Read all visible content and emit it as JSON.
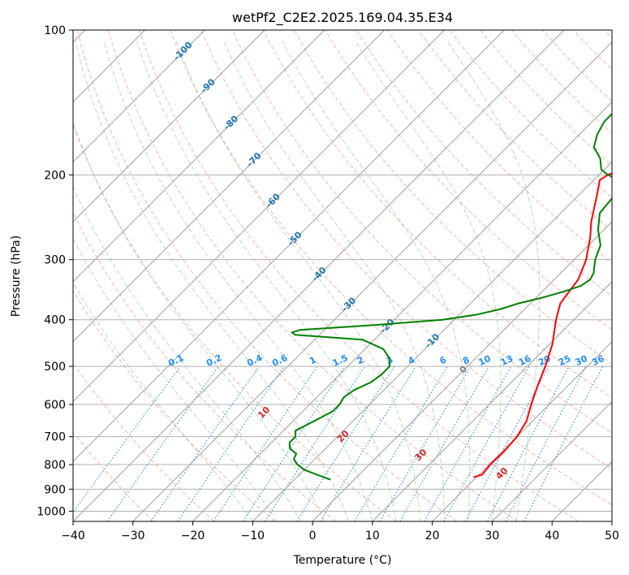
{
  "chart_data": {
    "type": "line",
    "title": "wetPf2_C2E2.2025.169.04.35.E34",
    "xlabel": "Temperature (°C)",
    "ylabel": "Pressure (hPa)",
    "xlim": [
      -40,
      50
    ],
    "ylim": [
      1050,
      100
    ],
    "y_scale": "log",
    "grid": true,
    "x_ticks": [
      "−40",
      "−30",
      "−20",
      "−10",
      "0",
      "10",
      "20",
      "30",
      "40",
      "50"
    ],
    "y_ticks": [
      "100",
      "200",
      "300",
      "400",
      "500",
      "600",
      "700",
      "800",
      "900",
      "1000"
    ],
    "colors": {
      "temperature": "#ff0000",
      "dewpoint": "#008000",
      "isotherm": "#a0a0a0",
      "dry_adiabat": "#fa8072",
      "moist_adiabat": "#6ab06a",
      "mixing_ratio": "#1f8fff",
      "isotherm_label": "#1f77b4",
      "mixing_label": "#1f8fff",
      "adiabat_label": "#d62728"
    },
    "temperature_profile": {
      "p": [
        850,
        840,
        800,
        750,
        700,
        650,
        600,
        550,
        500,
        450,
        400,
        370,
        350,
        330,
        300,
        270,
        250,
        220,
        205,
        200,
        195,
        185,
        175,
        160,
        150,
        140,
        130,
        120,
        110,
        100
      ],
      "t": [
        19.5,
        20.5,
        20.2,
        20.3,
        20.0,
        19.0,
        17.0,
        15.0,
        13.0,
        10.5,
        7.0,
        5.0,
        4.5,
        4.0,
        2.0,
        -1.0,
        -3.5,
        -7.0,
        -9.0,
        -8.5,
        -7.0,
        -3.5,
        -1.0,
        5.0,
        8.0,
        10.0,
        12.0,
        14.0,
        16.0,
        19.0
      ]
    },
    "dewpoint_profile": {
      "p": [
        860,
        840,
        820,
        800,
        780,
        760,
        740,
        720,
        700,
        680,
        660,
        640,
        620,
        600,
        580,
        560,
        540,
        520,
        500,
        480,
        460,
        440,
        430,
        425,
        420,
        410,
        400,
        390,
        380,
        370,
        360,
        350,
        340,
        330,
        320,
        300,
        280,
        260,
        240,
        220,
        210,
        205,
        200,
        195,
        185,
        175,
        165,
        155,
        145,
        135,
        120,
        110,
        100
      ],
      "t": [
        -4.0,
        -7.0,
        -10.0,
        -12.0,
        -13.5,
        -14.0,
        -16.0,
        -17.0,
        -17.0,
        -18.0,
        -17.0,
        -16.0,
        -15.0,
        -15.0,
        -15.5,
        -15.0,
        -13.5,
        -13.0,
        -13.0,
        -14.5,
        -17.0,
        -22.0,
        -34.0,
        -35.0,
        -34.0,
        -22.0,
        -12.0,
        -7.0,
        -4.0,
        -2.0,
        1.0,
        3.5,
        5.5,
        6.0,
        5.5,
        3.5,
        2.0,
        -1.0,
        -3.5,
        -4.0,
        -4.5,
        -6.0,
        -8.5,
        -10.5,
        -12.5,
        -15.5,
        -17.0,
        -18.0,
        -18.0,
        -13.0,
        -8.0,
        -4.0,
        0.0
      ]
    },
    "isotherm_labels": [
      "-100",
      "-90",
      "-80",
      "-70",
      "-60",
      "-50",
      "-40",
      "-30",
      "-20",
      "-10",
      "0"
    ],
    "mixing_ratio_labels": [
      "0.1",
      "0.2",
      "0.4",
      "0.6",
      "1",
      "1.5",
      "2",
      "3",
      "4",
      "6",
      "8",
      "10",
      "13",
      "16",
      "20",
      "25",
      "30",
      "36"
    ],
    "dry_adiabat_labels": [
      "10",
      "20",
      "30",
      "40"
    ]
  }
}
